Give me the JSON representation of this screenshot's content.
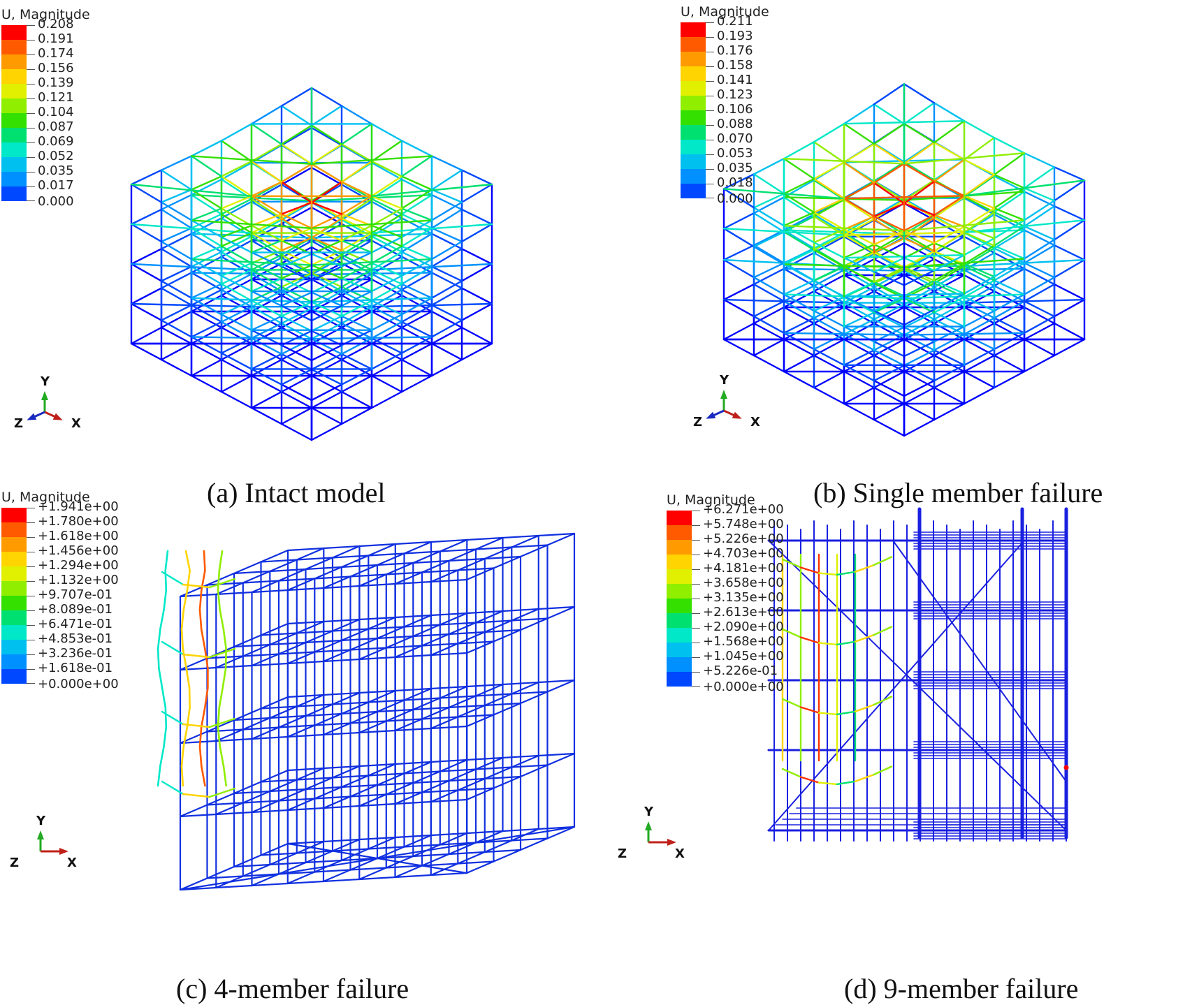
{
  "panels": [
    {
      "id": "a",
      "caption": "(a) Intact model",
      "legend_title": "U, Magnitude",
      "legend_labels": [
        "0.208",
        "0.191",
        "0.174",
        "0.156",
        "0.139",
        "0.121",
        "0.104",
        "0.087",
        "0.069",
        "0.052",
        "0.035",
        "0.017",
        "0.000"
      ],
      "axes": {
        "y": "Y",
        "z": "Z",
        "x": "X"
      }
    },
    {
      "id": "b",
      "caption": "(b) Single member failure",
      "legend_title": "U, Magnitude",
      "legend_labels": [
        "0.211",
        "0.193",
        "0.176",
        "0.158",
        "0.141",
        "0.123",
        "0.106",
        "0.088",
        "0.070",
        "0.053",
        "0.035",
        "0.018",
        "0.000"
      ],
      "axes": {
        "y": "Y",
        "z": "Z",
        "x": "X"
      }
    },
    {
      "id": "c",
      "caption": "(c) 4-member failure",
      "legend_title": "U, Magnitude",
      "legend_labels": [
        "+1.941e+00",
        "+1.780e+00",
        "+1.618e+00",
        "+1.456e+00",
        "+1.294e+00",
        "+1.132e+00",
        "+9.707e-01",
        "+8.089e-01",
        "+6.471e-01",
        "+4.853e-01",
        "+3.236e-01",
        "+1.618e-01",
        "+0.000e+00"
      ],
      "axes": {
        "y": "Y",
        "z": "Z",
        "x": "X"
      }
    },
    {
      "id": "d",
      "caption": "(d) 9-member failure",
      "legend_title": "U, Magnitude",
      "legend_labels": [
        "+6.271e+00",
        "+5.748e+00",
        "+5.226e+00",
        "+4.703e+00",
        "+4.181e+00",
        "+3.658e+00",
        "+3.135e+00",
        "+2.613e+00",
        "+2.090e+00",
        "+1.568e+00",
        "+1.045e+00",
        "+5.226e-01",
        "+0.000e+00"
      ],
      "axes": {
        "y": "Y",
        "z": "Z",
        "x": "X"
      }
    }
  ],
  "colormap": [
    "#ff0000",
    "#ff5a00",
    "#ff9a00",
    "#ffd400",
    "#e0f000",
    "#90ee00",
    "#33e000",
    "#00e070",
    "#00e8c8",
    "#00c0f0",
    "#0090ff",
    "#0048ff",
    "#0000ff"
  ]
}
